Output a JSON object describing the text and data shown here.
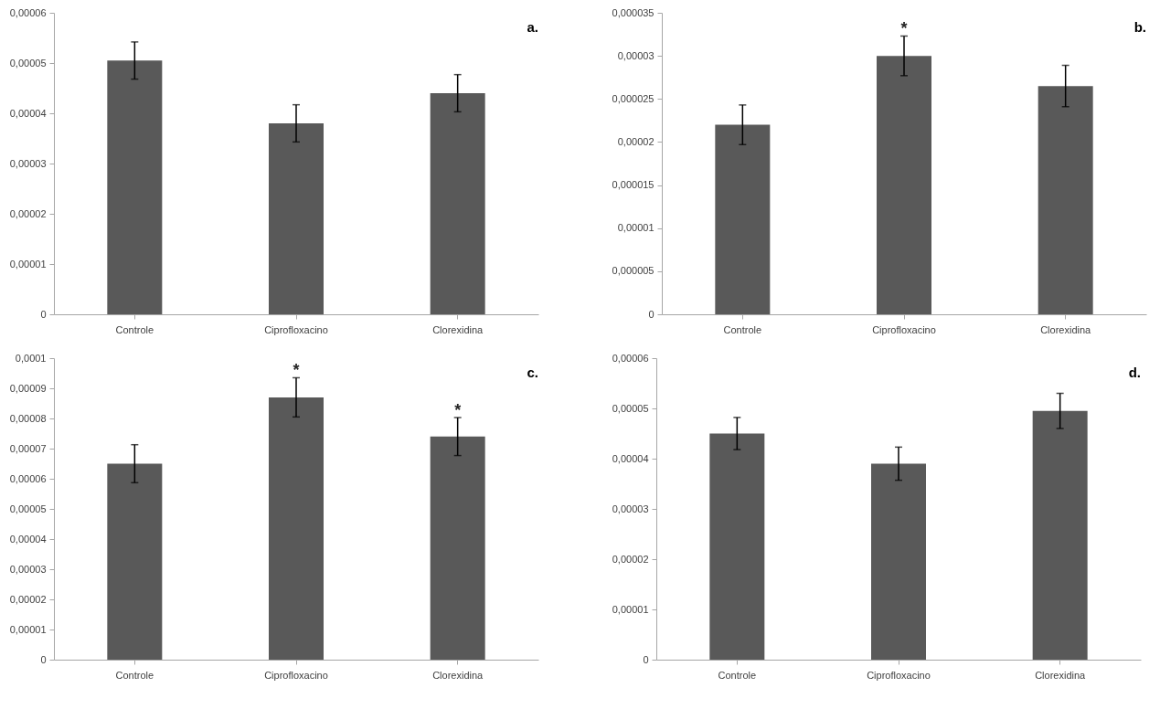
{
  "chart_data": [
    {
      "type": "bar",
      "title": "a.",
      "categories": [
        "Controle",
        "Ciprofloxacino",
        "Clorexidina"
      ],
      "values": [
        5.05e-05,
        3.8e-05,
        4.4e-05
      ],
      "errors": [
        3.7e-06,
        3.7e-06,
        3.7e-06
      ],
      "color": "#595959",
      "ylim": [
        0,
        6e-05
      ],
      "yticks": [
        {
          "value": 0,
          "label": "0"
        },
        {
          "value": 1e-05,
          "label": "0,00001"
        },
        {
          "value": 2e-05,
          "label": "0,00002"
        },
        {
          "value": 3e-05,
          "label": "0,00003"
        },
        {
          "value": 4e-05,
          "label": "0,00004"
        },
        {
          "value": 5e-05,
          "label": "0,00005"
        },
        {
          "value": 6e-05,
          "label": "0,00006"
        }
      ]
    },
    {
      "type": "bar",
      "title": "b.",
      "categories": [
        "Controle",
        "Ciprofloxacino",
        "Clorexidina"
      ],
      "values": [
        2.2e-05,
        3e-05,
        2.65e-05
      ],
      "errors": [
        2.3e-06,
        2.3e-06,
        2.4e-06
      ],
      "color": "#595959",
      "ylim": [
        0,
        3.5e-05
      ],
      "yticks": [
        {
          "value": 0,
          "label": "0"
        },
        {
          "value": 5e-06,
          "label": "0,000005"
        },
        {
          "value": 1e-05,
          "label": "0,00001"
        },
        {
          "value": 1.5e-05,
          "label": "0,000015"
        },
        {
          "value": 2e-05,
          "label": "0,00002"
        },
        {
          "value": 2.5e-05,
          "label": "0,000025"
        },
        {
          "value": 3e-05,
          "label": "0,00003"
        },
        {
          "value": 3.5e-05,
          "label": "0,000035"
        }
      ],
      "annotations": [
        {
          "text": "*",
          "x": "Ciprofloxacino",
          "y": 3e-05
        }
      ]
    },
    {
      "type": "bar",
      "title": "c.",
      "categories": [
        "Controle",
        "Ciprofloxacino",
        "Clorexidina"
      ],
      "values": [
        6.5e-05,
        8.7e-05,
        7.4e-05
      ],
      "errors": [
        6.3e-06,
        6.5e-06,
        6.3e-06
      ],
      "color": "#595959",
      "ylim": [
        0,
        0.0001
      ],
      "yticks": [
        {
          "value": 0,
          "label": "0"
        },
        {
          "value": 1e-05,
          "label": "0,00001"
        },
        {
          "value": 2e-05,
          "label": "0,00002"
        },
        {
          "value": 3e-05,
          "label": "0,00003"
        },
        {
          "value": 4e-05,
          "label": "0,00004"
        },
        {
          "value": 5e-05,
          "label": "0,00005"
        },
        {
          "value": 6e-05,
          "label": "0,00006"
        },
        {
          "value": 7e-05,
          "label": "0,00007"
        },
        {
          "value": 8e-05,
          "label": "0,00008"
        },
        {
          "value": 9e-05,
          "label": "0,00009"
        },
        {
          "value": 0.0001,
          "label": "0,0001"
        }
      ],
      "annotations": [
        {
          "text": "*",
          "x": "Ciprofloxacino",
          "y": 8.7e-05
        },
        {
          "text": "*",
          "x": "Clorexidina",
          "y": 7.4e-05
        }
      ]
    },
    {
      "type": "bar",
      "title": "d.",
      "categories": [
        "Controle",
        "Ciprofloxacino",
        "Clorexidina"
      ],
      "values": [
        4.5e-05,
        3.9e-05,
        4.95e-05
      ],
      "errors": [
        3.2e-06,
        3.3e-06,
        3.5e-06
      ],
      "color": "#595959",
      "ylim": [
        0,
        6e-05
      ],
      "yticks": [
        {
          "value": 0,
          "label": "0"
        },
        {
          "value": 1e-05,
          "label": "0,00001"
        },
        {
          "value": 2e-05,
          "label": "0,00002"
        },
        {
          "value": 3e-05,
          "label": "0,00003"
        },
        {
          "value": 4e-05,
          "label": "0,00004"
        },
        {
          "value": 5e-05,
          "label": "0,00005"
        },
        {
          "value": 6e-05,
          "label": "0,00006"
        }
      ]
    }
  ]
}
